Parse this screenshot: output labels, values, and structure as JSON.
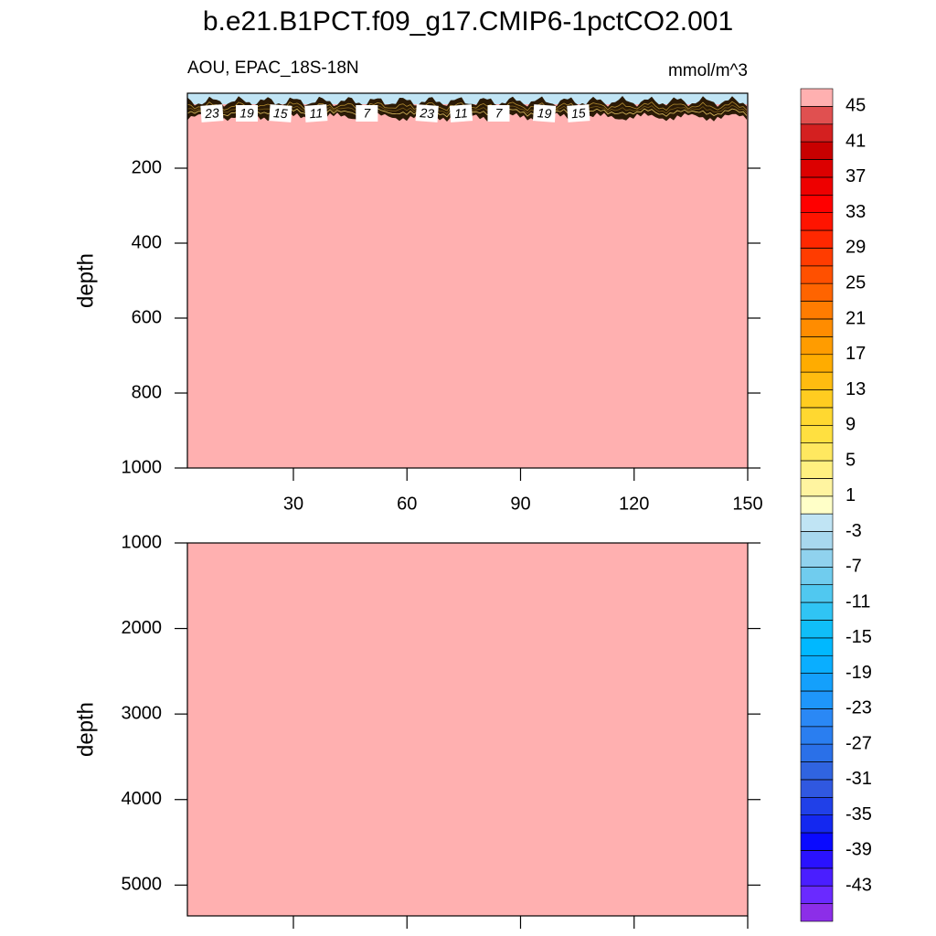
{
  "chart_data": {
    "type": "contour",
    "title": "b.e21.B1PCT.f09_g17.CMIP6-1pctCO2.001",
    "subtitle_left": "AOU, EPAC_18S-18N",
    "subtitle_right": "mmol/m^3",
    "panels": [
      {
        "ylabel": "depth",
        "xlim": [
          2,
          150
        ],
        "ylim": [
          0,
          1000
        ],
        "xticks": [
          30,
          60,
          90,
          120,
          150
        ],
        "yticks": [
          200,
          400,
          600,
          800,
          1000
        ],
        "xtick_labels": true,
        "contour_labels": [
          {
            "value": 23,
            "x": 8.5
          },
          {
            "value": 19,
            "x": 17.7
          },
          {
            "value": 15,
            "x": 26.6
          },
          {
            "value": 11,
            "x": 36
          },
          {
            "value": 7,
            "x": 49.4
          },
          {
            "value": 23,
            "x": 65.3
          },
          {
            "value": 11,
            "x": 74.3
          },
          {
            "value": 7,
            "x": 84.2
          },
          {
            "value": 19,
            "x": 96.3
          },
          {
            "value": 15,
            "x": 105.3
          }
        ]
      },
      {
        "ylabel": "depth",
        "xlim": [
          2,
          150
        ],
        "ylim": [
          1000,
          5360
        ],
        "xticks": [
          30,
          60,
          90,
          120,
          150
        ],
        "yticks": [
          1000,
          2000,
          3000,
          4000,
          5000
        ],
        "xtick_labels": false
      }
    ],
    "colorbar": {
      "levels": [
        -45,
        -43,
        -41,
        -39,
        -37,
        -35,
        -33,
        -31,
        -29,
        -27,
        -25,
        -23,
        -21,
        -19,
        -17,
        -15,
        -13,
        -11,
        -9,
        -7,
        -5,
        -3,
        -1,
        1,
        3,
        5,
        7,
        9,
        11,
        13,
        15,
        17,
        19,
        21,
        23,
        25,
        27,
        29,
        31,
        33,
        35,
        37,
        39,
        41,
        43,
        45
      ],
      "labeled_levels": [
        -43,
        -39,
        -35,
        -31,
        -27,
        -23,
        -19,
        -15,
        -11,
        -7,
        -3,
        1,
        5,
        9,
        13,
        17,
        21,
        25,
        29,
        33,
        37,
        41,
        45
      ],
      "colors": [
        "#8c2ee8",
        "#6a2aff",
        "#4a1eff",
        "#2a12ff",
        "#0a0aff",
        "#1428f0",
        "#2040e8",
        "#3058e0",
        "#3064e0",
        "#2a70e8",
        "#2a7ef0",
        "#2a88f5",
        "#1e96fa",
        "#14a0fc",
        "#0aaeff",
        "#00b8ff",
        "#10bef8",
        "#30c4f4",
        "#50c8f0",
        "#70ccee",
        "#90d2ee",
        "#a8d8ee",
        "#c0e4f4",
        "#ffffc8",
        "#fff4a0",
        "#fff080",
        "#ffe860",
        "#ffe040",
        "#ffd830",
        "#ffcc20",
        "#ffbc10",
        "#ffac00",
        "#ff9c00",
        "#ff8c00",
        "#ff7c00",
        "#ff6400",
        "#ff5000",
        "#ff3c00",
        "#ff2800",
        "#ff1400",
        "#ff0000",
        "#ee0000",
        "#dc0000",
        "#c80000",
        "#d42020",
        "#e05050",
        "#ffb0b0"
      ]
    }
  }
}
